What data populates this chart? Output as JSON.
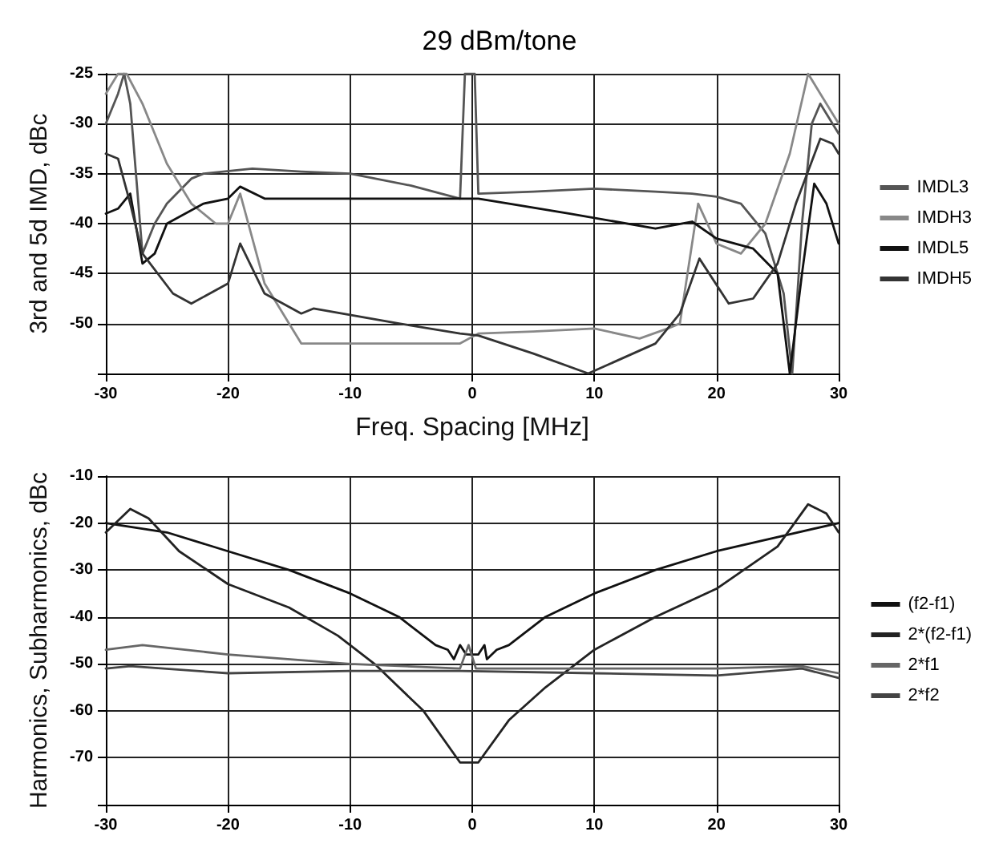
{
  "chart_data": [
    {
      "type": "line",
      "title": "29 dBm/tone",
      "xlabel": "Freq. Spacing [MHz]",
      "ylabel": "3rd and 5d IMD, dBc",
      "xlim": [
        -30,
        30
      ],
      "ylim": [
        -55,
        -25
      ],
      "xticks": [
        -30,
        -20,
        -10,
        0,
        10,
        20,
        30
      ],
      "yticks": [
        -25,
        -30,
        -35,
        -40,
        -45,
        -50,
        {
          "value": -55,
          "label": null
        }
      ],
      "grid": true,
      "legend": "right",
      "marker": "none",
      "line_style": "solid",
      "series": [
        {
          "name": "IMDL3",
          "color": "#555555",
          "x": [
            -30,
            -29,
            -28.5,
            -28,
            -27,
            -26,
            -25,
            -23,
            -22,
            -18,
            -14,
            -10,
            -5,
            -1,
            -0.6,
            0.2,
            0.5,
            5,
            10,
            15,
            18,
            20,
            22,
            24,
            25.5,
            26.2,
            27,
            27.8,
            28.5,
            30
          ],
          "values": [
            -30,
            -27,
            -25,
            -28,
            -43,
            -40,
            -38,
            -35.5,
            -35,
            -34.5,
            -34.8,
            -35,
            -36.2,
            -37.5,
            -25,
            -25,
            -37,
            -36.8,
            -36.5,
            -36.8,
            -37,
            -37.3,
            -38,
            -41,
            -47,
            -55,
            -40,
            -30,
            -28,
            -31
          ]
        },
        {
          "name": "IMDH3",
          "color": "#888888",
          "x": [
            -30,
            -29,
            -28.3,
            -27,
            -26,
            -25,
            -23,
            -21,
            -20,
            -19,
            -17,
            -14,
            -10,
            -1,
            0.5,
            5,
            10,
            13.7,
            16,
            17,
            18.5,
            20,
            22,
            24,
            26,
            27.5,
            28.5,
            30
          ],
          "values": [
            -27,
            -25,
            -25,
            -28,
            -31,
            -34,
            -38,
            -40,
            -40,
            -37,
            -46,
            -52,
            -52,
            -52,
            -51,
            -50.8,
            -50.5,
            -51.5,
            -50.5,
            -50,
            -38,
            -42,
            -43,
            -40,
            -33,
            -25,
            -27,
            -30
          ]
        },
        {
          "name": "IMDL5",
          "color": "#111111",
          "x": [
            -30,
            -29,
            -28,
            -27,
            -26,
            -25,
            -22,
            -20,
            -19,
            -17,
            -10,
            -1,
            0.5,
            8,
            15,
            18,
            20,
            23,
            25,
            26,
            27,
            28,
            29,
            30
          ],
          "values": [
            -39,
            -38.5,
            -37,
            -44,
            -43,
            -40,
            -38,
            -37.5,
            -36.3,
            -37.5,
            -37.5,
            -37.5,
            -37.5,
            -39,
            -40.5,
            -39.8,
            -41.5,
            -42.5,
            -45,
            -55,
            -45,
            -36,
            -38,
            -42
          ]
        },
        {
          "name": "IMDH5",
          "color": "#333333",
          "x": [
            -30,
            -29,
            -28,
            -27,
            -24.5,
            -23,
            -20,
            -19,
            -17,
            -14,
            -13,
            -6,
            -1,
            0.5,
            5,
            9.5,
            15,
            17,
            18.6,
            21,
            23,
            25,
            26.5,
            28.5,
            29.5,
            30
          ],
          "values": [
            -33,
            -33.5,
            -38,
            -43,
            -47,
            -48,
            -46,
            -42,
            -47,
            -49,
            -48.5,
            -50,
            -51,
            -51.2,
            -53,
            -55,
            -52,
            -49,
            -43.5,
            -48,
            -47.5,
            -44,
            -38,
            -31.5,
            -32,
            -33
          ]
        }
      ]
    },
    {
      "type": "line",
      "ylabel": "Harmonics, Subharmonics, dBc",
      "xlim": [
        -30,
        30
      ],
      "ylim": [
        -80,
        -10
      ],
      "xticks": [
        -30,
        -20,
        -10,
        0,
        10,
        20,
        30
      ],
      "yticks": [
        -10,
        -20,
        -30,
        -40,
        -50,
        -60,
        -70,
        {
          "value": -80,
          "label": null
        }
      ],
      "grid": true,
      "legend": "right",
      "marker": "none",
      "line_style": "solid",
      "series": [
        {
          "name": "(f2-f1)",
          "color": "#111111",
          "x": [
            -30,
            -25,
            -20,
            -15,
            -10,
            -6,
            -3,
            -2,
            -1.5,
            -1,
            -0.5,
            0.5,
            1,
            1.2,
            2,
            3,
            6,
            10,
            15,
            20,
            25,
            30
          ],
          "values": [
            -20,
            -22,
            -26,
            -30,
            -35,
            -40,
            -46,
            -47,
            -49,
            -46,
            -48,
            -48,
            -46,
            -49,
            -47,
            -46,
            -40,
            -35,
            -30,
            -26,
            -23,
            -20
          ]
        },
        {
          "name": "2*(f2-f1)",
          "color": "#222222",
          "x": [
            -30,
            -28,
            -26.5,
            -24,
            -20,
            -15,
            -11,
            -8,
            -4,
            -1,
            0.5,
            3,
            6,
            10,
            15,
            20,
            25,
            27.5,
            29,
            30
          ],
          "values": [
            -22,
            -17,
            -19,
            -26,
            -33,
            -38,
            -44,
            -50,
            -60,
            -71,
            -71,
            -62,
            -55,
            -47,
            -40,
            -34,
            -25,
            -16,
            -18,
            -22
          ]
        },
        {
          "name": "2*f1",
          "color": "#666666",
          "x": [
            -30,
            -27,
            -20,
            -10,
            -1,
            -0.3,
            0.3,
            10,
            20,
            27,
            30
          ],
          "values": [
            -47,
            -46,
            -48,
            -50,
            -51,
            -46,
            -51,
            -51,
            -51,
            -50.5,
            -52
          ]
        },
        {
          "name": "2*f2",
          "color": "#444444",
          "x": [
            -30,
            -28,
            -20,
            -10,
            -1,
            10,
            20,
            27,
            30
          ],
          "values": [
            -51,
            -50.5,
            -52,
            -51.5,
            -51.5,
            -52,
            -52.5,
            -51,
            -53
          ]
        }
      ]
    }
  ]
}
